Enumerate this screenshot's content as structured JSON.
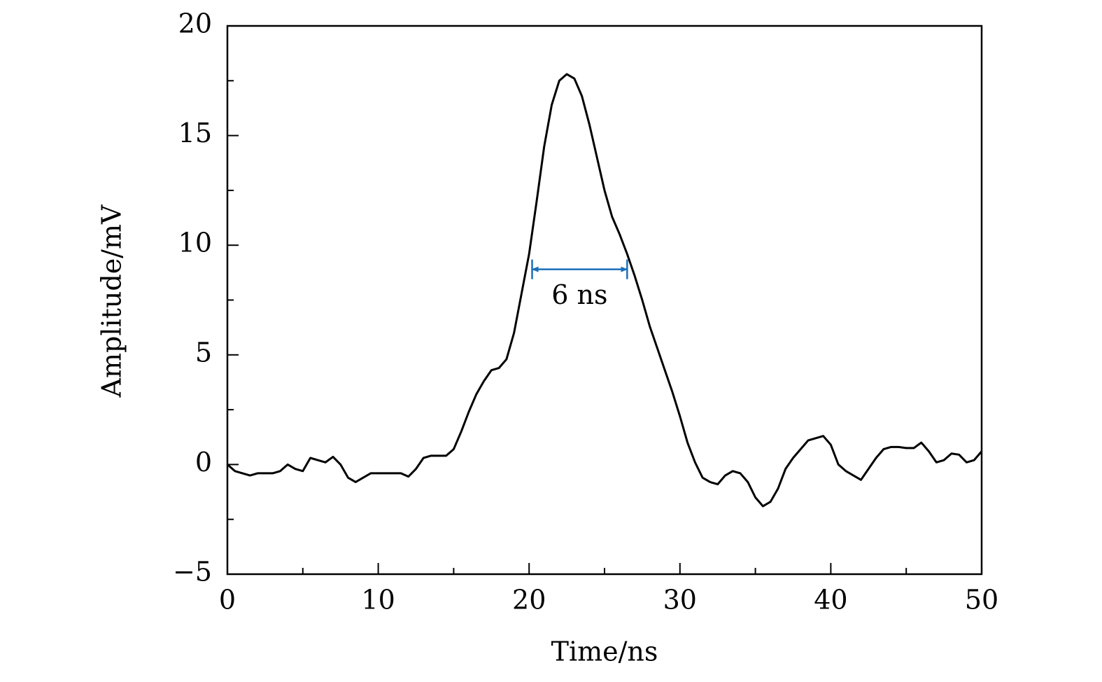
{
  "chart_data": {
    "type": "line",
    "xlabel": "Time/ns",
    "ylabel": "Amplitude/mV",
    "x": [
      0,
      0.5,
      1,
      1.5,
      2,
      2.5,
      3,
      3.5,
      4,
      4.5,
      5,
      5.5,
      6,
      6.5,
      7,
      7.5,
      8,
      8.5,
      9,
      9.5,
      10,
      10.5,
      11,
      11.5,
      12,
      12.5,
      13,
      13.5,
      14,
      14.5,
      15,
      15.5,
      16,
      16.5,
      17,
      17.5,
      18,
      18.5,
      19,
      19.5,
      20,
      20.5,
      21,
      21.5,
      22,
      22.5,
      23,
      23.5,
      24,
      24.5,
      25,
      25.5,
      26,
      26.5,
      27,
      27.5,
      28,
      28.5,
      29,
      29.5,
      30,
      30.5,
      31,
      31.5,
      32,
      32.5,
      33,
      33.5,
      34,
      34.5,
      35,
      35.5,
      36,
      36.5,
      37,
      37.5,
      38,
      38.5,
      39,
      39.5,
      40,
      40.5,
      41,
      41.5,
      42,
      42.5,
      43,
      43.5,
      44,
      44.5,
      45,
      45.5,
      46,
      46.5,
      47,
      47.5,
      48,
      48.5,
      49,
      49.5,
      50
    ],
    "series": [
      {
        "color": "#000000",
        "values": [
          0,
          -0.3,
          -0.4,
          -0.5,
          -0.4,
          -0.4,
          -0.4,
          -0.3,
          0.0,
          -0.2,
          -0.3,
          0.3,
          0.2,
          0.1,
          0.35,
          0.0,
          -0.6,
          -0.8,
          -0.6,
          -0.4,
          -0.4,
          -0.4,
          -0.4,
          -0.4,
          -0.55,
          -0.2,
          0.3,
          0.4,
          0.4,
          0.4,
          0.7,
          1.5,
          2.4,
          3.2,
          3.8,
          4.3,
          4.4,
          4.8,
          6.0,
          7.8,
          9.6,
          12.0,
          14.5,
          16.4,
          17.5,
          17.8,
          17.6,
          16.8,
          15.5,
          14.0,
          12.5,
          11.3,
          10.5,
          9.6,
          8.6,
          7.5,
          6.3,
          5.3,
          4.3,
          3.3,
          2.2,
          1.0,
          0.1,
          -0.6,
          -0.8,
          -0.9,
          -0.5,
          -0.3,
          -0.4,
          -0.8,
          -1.5,
          -1.9,
          -1.7,
          -1.1,
          -0.2,
          0.3,
          0.7,
          1.1,
          1.2,
          1.3,
          0.9,
          0.0,
          -0.3,
          -0.5,
          -0.7,
          -0.2,
          0.3,
          0.7,
          0.8,
          0.8,
          0.75,
          0.75,
          1.0,
          0.6,
          0.1,
          0.2,
          0.5,
          0.45,
          0.1,
          0.2,
          0.6
        ]
      }
    ],
    "xlim": [
      0,
      50
    ],
    "xticks": [
      0,
      10,
      20,
      30,
      40,
      50
    ],
    "xminor_ticks": [
      5,
      15,
      25,
      35,
      45
    ],
    "ylim": [
      -5,
      20
    ],
    "yticks": [
      {
        "value": -5,
        "label": "−5"
      },
      0,
      5,
      10,
      15,
      20
    ],
    "yminor_ticks": [
      -2.5,
      2.5,
      7.5,
      12.5,
      17.5
    ],
    "annotation": {
      "text": "6 ns",
      "x_start": 20.2,
      "x_end": 26.5,
      "y": 8.9,
      "color": "#1a6fba"
    }
  }
}
